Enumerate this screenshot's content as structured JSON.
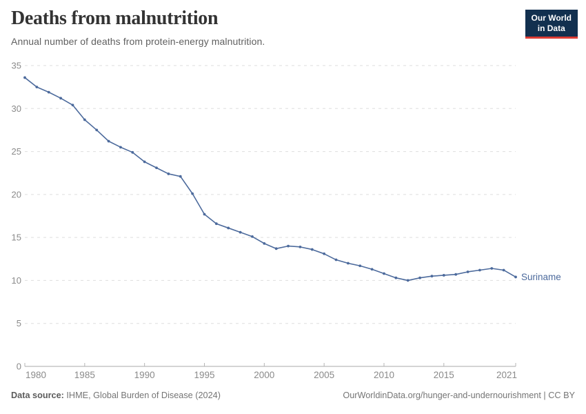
{
  "header": {
    "title": "Deaths from malnutrition",
    "subtitle": "Annual number of deaths from protein-energy malnutrition.",
    "logo_line1": "Our World",
    "logo_line2": "in Data",
    "logo_bg_color": "#12304f",
    "logo_accent_color": "#dc3c34"
  },
  "chart_data": {
    "type": "line",
    "title": "Deaths from malnutrition",
    "subtitle": "Annual number of deaths from protein-energy malnutrition.",
    "xlabel": "",
    "ylabel": "",
    "xlim": [
      1980,
      2021
    ],
    "ylim": [
      0,
      35
    ],
    "x_ticks": [
      1980,
      1985,
      1990,
      1995,
      2000,
      2005,
      2010,
      2015,
      2021
    ],
    "y_ticks": [
      0,
      5,
      10,
      15,
      20,
      25,
      30,
      35
    ],
    "grid": "horizontal-dashed",
    "legend_position": "end-of-line-label",
    "series": [
      {
        "name": "Suriname",
        "color": "#4C6A9C",
        "x": [
          1980,
          1981,
          1982,
          1983,
          1984,
          1985,
          1986,
          1987,
          1988,
          1989,
          1990,
          1991,
          1992,
          1993,
          1994,
          1995,
          1996,
          1997,
          1998,
          1999,
          2000,
          2001,
          2002,
          2003,
          2004,
          2005,
          2006,
          2007,
          2008,
          2009,
          2010,
          2011,
          2012,
          2013,
          2014,
          2015,
          2016,
          2017,
          2018,
          2019,
          2020,
          2021
        ],
        "values": [
          33.6,
          32.5,
          31.9,
          31.2,
          30.4,
          28.7,
          27.5,
          26.2,
          25.5,
          24.9,
          23.8,
          23.1,
          22.4,
          22.1,
          20.1,
          17.7,
          16.6,
          16.1,
          15.6,
          15.1,
          14.3,
          13.7,
          14.0,
          13.9,
          13.6,
          13.1,
          12.4,
          12.0,
          11.7,
          11.3,
          10.8,
          10.3,
          10.0,
          10.3,
          10.5,
          10.6,
          10.7,
          11.0,
          11.2,
          11.4,
          11.2,
          10.4
        ]
      }
    ]
  },
  "footer": {
    "source_label": "Data source:",
    "source_value": "IHME, Global Burden of Disease (2024)",
    "url": "OurWorldinData.org/hunger-and-undernourishment",
    "separator": "|",
    "license": "CC BY"
  }
}
